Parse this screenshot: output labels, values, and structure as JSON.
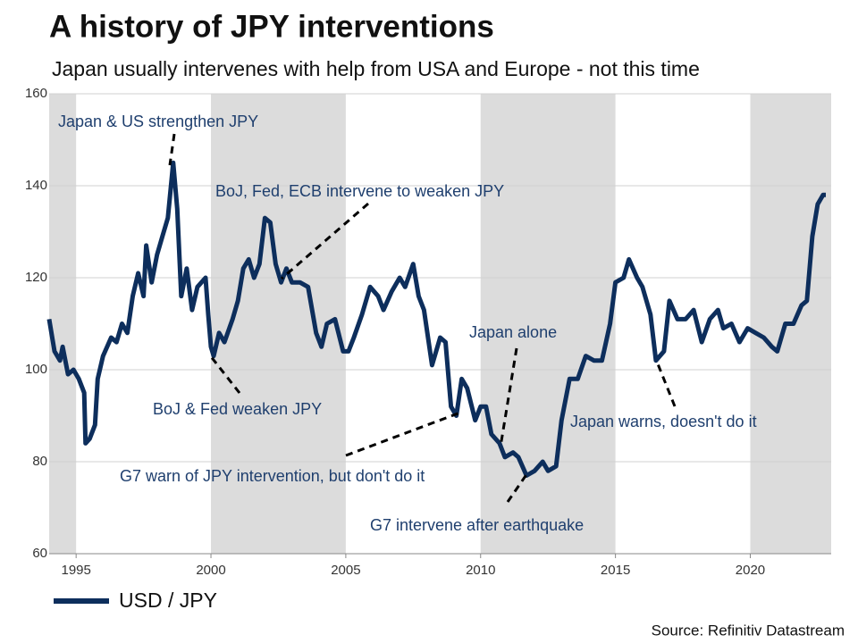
{
  "chart_data": {
    "type": "line",
    "title": "A history of JPY interventions",
    "subtitle": "Japan usually intervenes with help from USA and Europe - not this time",
    "source": "Source: Refinitiv Datastream",
    "xlim": [
      1994,
      2023
    ],
    "xticks": [
      1995,
      2000,
      2005,
      2010,
      2015,
      2020
    ],
    "ylim": [
      60,
      160
    ],
    "yticks": [
      60,
      80,
      100,
      120,
      140,
      160
    ],
    "grid": true,
    "shaded_x_ranges": [
      [
        1994,
        1995
      ],
      [
        2000,
        2005
      ],
      [
        2010,
        2015
      ],
      [
        2020,
        2023
      ]
    ],
    "shade_color": "#dcdcdc",
    "legend": "bottom-left",
    "x": [
      1994.0,
      1994.2,
      1994.4,
      1994.5,
      1994.7,
      1994.9,
      1995.1,
      1995.3,
      1995.35,
      1995.5,
      1995.7,
      1995.8,
      1996.0,
      1996.3,
      1996.5,
      1996.7,
      1996.9,
      1997.1,
      1997.3,
      1997.5,
      1997.6,
      1997.8,
      1998.0,
      1998.2,
      1998.4,
      1998.5,
      1998.6,
      1998.75,
      1998.9,
      1999.1,
      1999.3,
      1999.5,
      1999.8,
      1999.9,
      2000.0,
      2000.1,
      2000.3,
      2000.5,
      2000.8,
      2001.0,
      2001.2,
      2001.4,
      2001.6,
      2001.8,
      2002.0,
      2002.2,
      2002.4,
      2002.6,
      2002.8,
      2003.0,
      2003.3,
      2003.6,
      2003.9,
      2004.1,
      2004.3,
      2004.6,
      2004.9,
      2005.1,
      2005.3,
      2005.6,
      2005.9,
      2006.2,
      2006.4,
      2006.7,
      2007.0,
      2007.2,
      2007.5,
      2007.7,
      2007.9,
      2008.2,
      2008.5,
      2008.7,
      2008.9,
      2009.1,
      2009.3,
      2009.5,
      2009.8,
      2010.0,
      2010.2,
      2010.4,
      2010.7,
      2010.9,
      2011.2,
      2011.4,
      2011.7,
      2012.0,
      2012.3,
      2012.5,
      2012.8,
      2013.0,
      2013.3,
      2013.6,
      2013.9,
      2014.2,
      2014.5,
      2014.8,
      2015.0,
      2015.3,
      2015.5,
      2015.8,
      2016.0,
      2016.3,
      2016.5,
      2016.8,
      2017.0,
      2017.3,
      2017.6,
      2017.9,
      2018.2,
      2018.5,
      2018.8,
      2019.0,
      2019.3,
      2019.6,
      2019.9,
      2020.2,
      2020.5,
      2020.8,
      2021.0,
      2021.3,
      2021.6,
      2021.9,
      2022.1,
      2022.3,
      2022.5,
      2022.7,
      2022.8
    ],
    "series": [
      {
        "name": "USD / JPY",
        "color": "#0d2e5c",
        "values": [
          111,
          104,
          102,
          105,
          99,
          100,
          98,
          95,
          84,
          85,
          88,
          98,
          103,
          107,
          106,
          110,
          108,
          116,
          121,
          116,
          127,
          119,
          125,
          129,
          133,
          139,
          145,
          135,
          116,
          122,
          113,
          118,
          120,
          112,
          105,
          103,
          108,
          106,
          111,
          115,
          122,
          124,
          120,
          123,
          133,
          132,
          123,
          119,
          122,
          119,
          119,
          118,
          108,
          105,
          110,
          111,
          104,
          104,
          107,
          112,
          118,
          116,
          113,
          117,
          120,
          118,
          123,
          116,
          113,
          101,
          107,
          106,
          92,
          90,
          98,
          96,
          89,
          92,
          92,
          86,
          84,
          81,
          82,
          81,
          77,
          78,
          80,
          78,
          79,
          89,
          98,
          98,
          103,
          102,
          102,
          110,
          119,
          120,
          124,
          120,
          118,
          112,
          102,
          104,
          115,
          111,
          111,
          113,
          106,
          111,
          113,
          109,
          110,
          106,
          109,
          108,
          107,
          105,
          104,
          110,
          110,
          114,
          115,
          129,
          136,
          138,
          138
        ]
      }
    ],
    "annotations": [
      "Japan & US strengthen JPY",
      "BoJ, Fed, ECB intervene to weaken JPY",
      "Japan alone",
      "BoJ & Fed weaken JPY",
      "G7 warn of JPY intervention, but don't do it",
      "G7 intervene after earthquake",
      "Japan warns, doesn't do it"
    ]
  }
}
